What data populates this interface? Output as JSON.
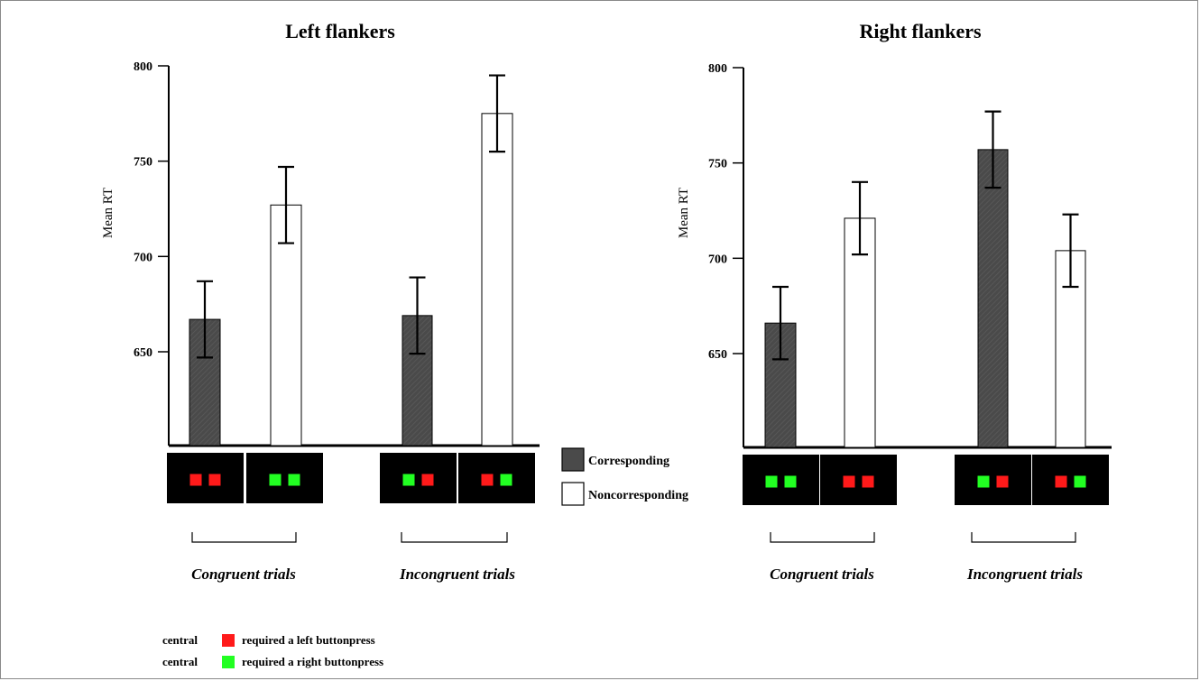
{
  "colors": {
    "corresponding": "#4a4a4a",
    "noncorresponding": "#ffffff",
    "red_square": "#ff1a1a",
    "green_square": "#22ff22",
    "stimulus_bg": "#000000"
  },
  "legend": {
    "corresponding_label": "Corresponding",
    "noncorresponding_label": "Noncorresponding"
  },
  "key": {
    "line1_prefix": "central",
    "line1_suffix": "required a left buttonpress",
    "line2_prefix": "central",
    "line2_suffix": "required a right buttonpress"
  },
  "chart_data": [
    {
      "type": "bar",
      "title": "Left flankers",
      "ylabel": "Mean RT",
      "ylim": [
        600,
        800
      ],
      "yticks": [
        650,
        700,
        750,
        800
      ],
      "categories": [
        "Congruent trials",
        "Incongruent trials"
      ],
      "series": [
        {
          "name": "Corresponding",
          "values": [
            667,
            669
          ],
          "errors": [
            20,
            20
          ]
        },
        {
          "name": "Noncorresponding",
          "values": [
            727,
            775
          ],
          "errors": [
            20,
            20
          ]
        }
      ],
      "stimuli": [
        [
          "red",
          "red"
        ],
        [
          "green",
          "green"
        ],
        [
          "green",
          "red"
        ],
        [
          "red",
          "green"
        ]
      ]
    },
    {
      "type": "bar",
      "title": "Right flankers",
      "ylabel": "Mean RT",
      "ylim": [
        600,
        800
      ],
      "yticks": [
        650,
        700,
        750,
        800
      ],
      "categories": [
        "Congruent trials",
        "Incongruent trials"
      ],
      "series": [
        {
          "name": "Corresponding",
          "values": [
            666,
            757
          ],
          "errors": [
            19,
            20
          ]
        },
        {
          "name": "Noncorresponding",
          "values": [
            721,
            704
          ],
          "errors": [
            19,
            19
          ]
        }
      ],
      "stimuli": [
        [
          "green",
          "green"
        ],
        [
          "red",
          "red"
        ],
        [
          "green",
          "red"
        ],
        [
          "red",
          "green"
        ]
      ]
    }
  ]
}
